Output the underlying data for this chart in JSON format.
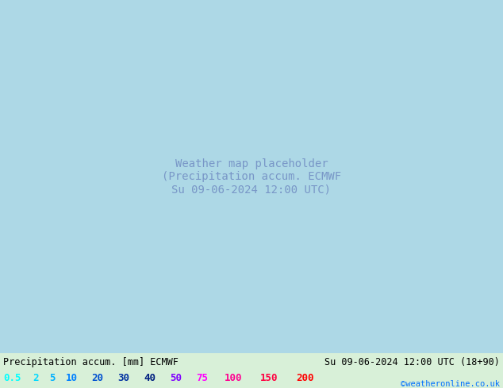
{
  "title_left": "Precipitation accum. [mm] ECMWF",
  "title_right": "Su 09-06-2024 12:00 UTC (18+90)",
  "credit": "©weatheronline.co.uk",
  "legend_values": [
    "0.5",
    "2",
    "5",
    "10",
    "20",
    "30",
    "40",
    "50",
    "75",
    "100",
    "150",
    "200"
  ],
  "legend_colors": [
    "#00ffff",
    "#00d8ff",
    "#00b0ff",
    "#0080ff",
    "#0050d0",
    "#0030a0",
    "#002080",
    "#8000ff",
    "#ff00ff",
    "#ff0090",
    "#ff0040",
    "#ff0000"
  ],
  "bg_color": "#d8f0d8",
  "map_image_placeholder": true,
  "figsize": [
    6.34,
    4.9
  ],
  "dpi": 100
}
